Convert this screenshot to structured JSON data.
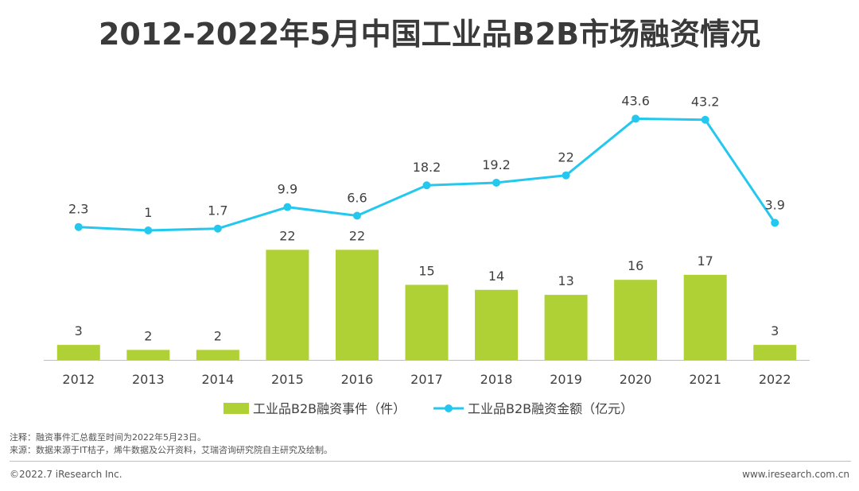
{
  "page": {
    "title": "2012-2022年5月中国工业品B2B市场融资情况",
    "note": "注释：融资事件汇总截至时间为2022年5月23日。",
    "source": "来源：数据来源于IT桔子，烯牛数据及公开资料，艾瑞咨询研究院自主研究及绘制。",
    "copyright": "©2022.7 iResearch Inc.",
    "website": "www.iresearch.com.cn"
  },
  "colors": {
    "bar": "#b0d135",
    "line": "#24c8ee",
    "axis": "#bfbfbf",
    "label": "#404040"
  },
  "chart_data": {
    "type": "bar+line",
    "title": "2012-2022年5月中国工业品B2B市场融资情况",
    "categories": [
      "2012",
      "2013",
      "2014",
      "2015",
      "2016",
      "2017",
      "2018",
      "2019",
      "2020",
      "2021",
      "2022"
    ],
    "series": [
      {
        "name": "工业品B2B融资事件（件）",
        "type": "bar",
        "values": [
          3,
          2,
          2,
          22,
          22,
          15,
          14,
          13,
          16,
          17,
          3
        ]
      },
      {
        "name": "工业品B2B融资金额（亿元）",
        "type": "line",
        "values": [
          2.3,
          1,
          1.7,
          9.9,
          6.6,
          18.2,
          19.2,
          22,
          43.6,
          43.2,
          3.9
        ]
      }
    ],
    "legend_position": "bottom"
  }
}
